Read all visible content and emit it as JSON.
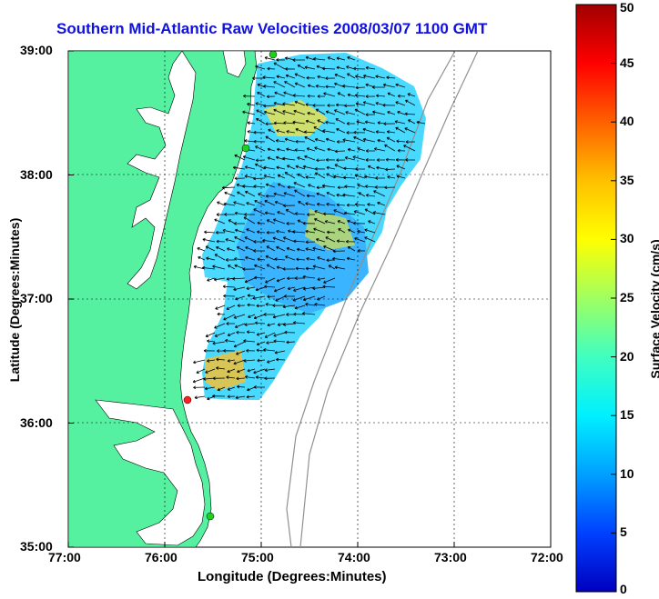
{
  "title": "Southern Mid-Atlantic Raw Velocities 2008/03/07 1100 GMT",
  "x_axis_label": "Longitude (Degrees:Minutes)",
  "y_axis_label": "Latitude (Degrees:Minutes)",
  "x_ticks": [
    "77:00",
    "76:00",
    "75:00",
    "74:00",
    "73:00",
    "72:00"
  ],
  "y_ticks": [
    "39:00",
    "38:00",
    "37:00",
    "36:00",
    "35:00"
  ],
  "colorbar": {
    "label": "Surface Velocity (cm/s)",
    "ticks": [
      "50",
      "45",
      "40",
      "35",
      "30",
      "25",
      "20",
      "15",
      "10",
      "5",
      "0"
    ],
    "range": [
      0,
      50
    ],
    "colors": [
      "#0000c0",
      "#0040ff",
      "#00a0ff",
      "#00f0ff",
      "#40ffc0",
      "#a0ff60",
      "#ffff00",
      "#ffc000",
      "#ff6000",
      "#ff0000",
      "#a00000"
    ]
  },
  "map_colors": {
    "land": "#55f0a0",
    "water": "#ffffff",
    "bathymetry": "#909090",
    "grid": "#000000",
    "arrows": "#000000"
  },
  "markers": [
    {
      "name": "station-north",
      "color": "#20d020"
    },
    {
      "name": "station-mid",
      "color": "#20d020"
    },
    {
      "name": "station-red",
      "color": "#ff2020"
    },
    {
      "name": "station-south",
      "color": "#20d020"
    }
  ]
}
